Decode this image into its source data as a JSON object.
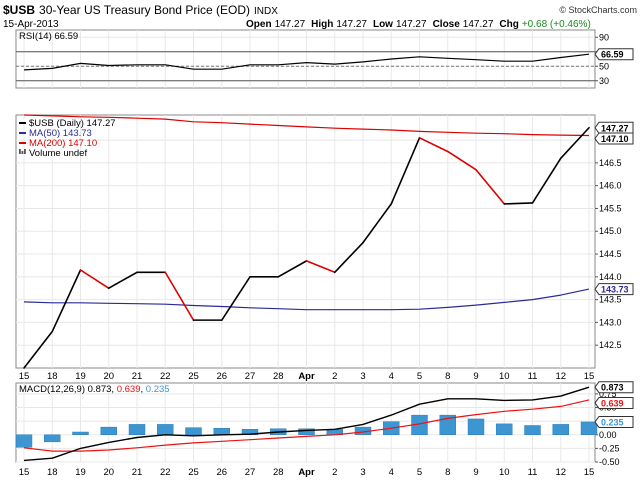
{
  "header": {
    "symbol": "$USB",
    "name": "30-Year US Treasury Bond Price (EOD)",
    "exchange": "INDX",
    "date": "15-Apr-2013",
    "open_label": "Open",
    "open": "147.27",
    "high_label": "High",
    "high": "147.27",
    "low_label": "Low",
    "low": "147.27",
    "close_label": "Close",
    "close": "147.27",
    "chg_label": "Chg",
    "chg": "+0.68 (+0.46%)",
    "watermark": "© StockCharts.com"
  },
  "colors": {
    "price": "#000000",
    "ma50": "#2a2a9a",
    "ma200": "#dd0000",
    "macd_line": "#000000",
    "signal_line": "#ee1111",
    "histogram": "#3d96d2",
    "grid": "#e8e8e8",
    "frame": "#888888"
  },
  "x_tick_labels": [
    "15",
    "18",
    "19",
    "20",
    "21",
    "22",
    "25",
    "26",
    "27",
    "28",
    "Apr",
    "2",
    "3",
    "4",
    "5",
    "8",
    "9",
    "10",
    "11",
    "12",
    "15"
  ],
  "chart_data": [
    {
      "type": "line",
      "panel": "rsi",
      "legend": "RSI(14) 66.59",
      "series": [
        {
          "name": "RSI(14)",
          "values": [
            45,
            47,
            54,
            51,
            52,
            52,
            46,
            46,
            52,
            52,
            55,
            53,
            56,
            60,
            63,
            61,
            59,
            57,
            57,
            62,
            66.59
          ]
        }
      ],
      "ylim": [
        20,
        100
      ],
      "yticks": [
        90,
        70,
        50,
        30
      ],
      "reference_lines": [
        70,
        50,
        30
      ],
      "last_value_label": "66.59"
    },
    {
      "type": "line",
      "panel": "price",
      "legend": [
        "$USB (Daily) 147.27",
        "MA(50) 143.73",
        "MA(200) 147.10",
        "Volume undef"
      ],
      "series": [
        {
          "name": "$USB (Daily)",
          "values": [
            142.0,
            142.8,
            144.15,
            143.75,
            144.1,
            144.1,
            143.05,
            143.05,
            144.0,
            144.0,
            144.35,
            144.1,
            144.75,
            145.6,
            147.05,
            146.75,
            146.35,
            145.6,
            145.62,
            146.6,
            147.27
          ]
        },
        {
          "name": "MA(50)",
          "values": [
            143.45,
            143.43,
            143.43,
            143.42,
            143.41,
            143.4,
            143.37,
            143.35,
            143.32,
            143.3,
            143.28,
            143.28,
            143.28,
            143.28,
            143.29,
            143.33,
            143.38,
            143.44,
            143.5,
            143.6,
            143.73
          ]
        },
        {
          "name": "MA(200)",
          "values": [
            147.55,
            147.53,
            147.51,
            147.5,
            147.48,
            147.46,
            147.4,
            147.38,
            147.35,
            147.32,
            147.29,
            147.26,
            147.24,
            147.22,
            147.19,
            147.17,
            147.15,
            147.14,
            147.12,
            147.11,
            147.1
          ]
        }
      ],
      "ylim": [
        142.0,
        147.55
      ],
      "yticks": [
        142.5,
        143.0,
        143.5,
        144.0,
        144.5,
        145.0,
        145.5,
        146.0,
        146.5,
        147.0
      ],
      "last_value_labels": [
        "147.27",
        "147.10",
        "143.73"
      ]
    },
    {
      "type": "bar",
      "panel": "macd",
      "legend": "MACD(12,26,9) 0.873, 0.639, 0.235",
      "legend_parts": {
        "name": "MACD(12,26,9)",
        "macd": "0.873",
        "signal": "0.639",
        "hist": "0.235"
      },
      "series": [
        {
          "name": "MACD",
          "values": [
            -0.47,
            -0.43,
            -0.25,
            -0.14,
            -0.05,
            0.0,
            -0.02,
            0.0,
            0.01,
            0.05,
            0.08,
            0.1,
            0.19,
            0.36,
            0.56,
            0.66,
            0.66,
            0.63,
            0.64,
            0.71,
            0.873
          ]
        },
        {
          "name": "Signal",
          "values": [
            -0.24,
            -0.3,
            -0.3,
            -0.28,
            -0.24,
            -0.19,
            -0.15,
            -0.12,
            -0.09,
            -0.06,
            -0.03,
            0.0,
            0.05,
            0.12,
            0.2,
            0.3,
            0.37,
            0.43,
            0.47,
            0.52,
            0.639
          ]
        },
        {
          "name": "Histogram",
          "values": [
            -0.23,
            -0.13,
            0.05,
            0.14,
            0.19,
            0.19,
            0.13,
            0.12,
            0.1,
            0.11,
            0.11,
            0.1,
            0.14,
            0.24,
            0.36,
            0.36,
            0.29,
            0.2,
            0.17,
            0.19,
            0.235
          ]
        }
      ],
      "ylim": [
        -0.5,
        0.95
      ],
      "yticks": [
        0.75,
        0.5,
        0.25,
        0.0,
        -0.25,
        -0.5
      ],
      "last_value_labels": [
        "0.873",
        "0.639",
        "0.235"
      ]
    }
  ]
}
